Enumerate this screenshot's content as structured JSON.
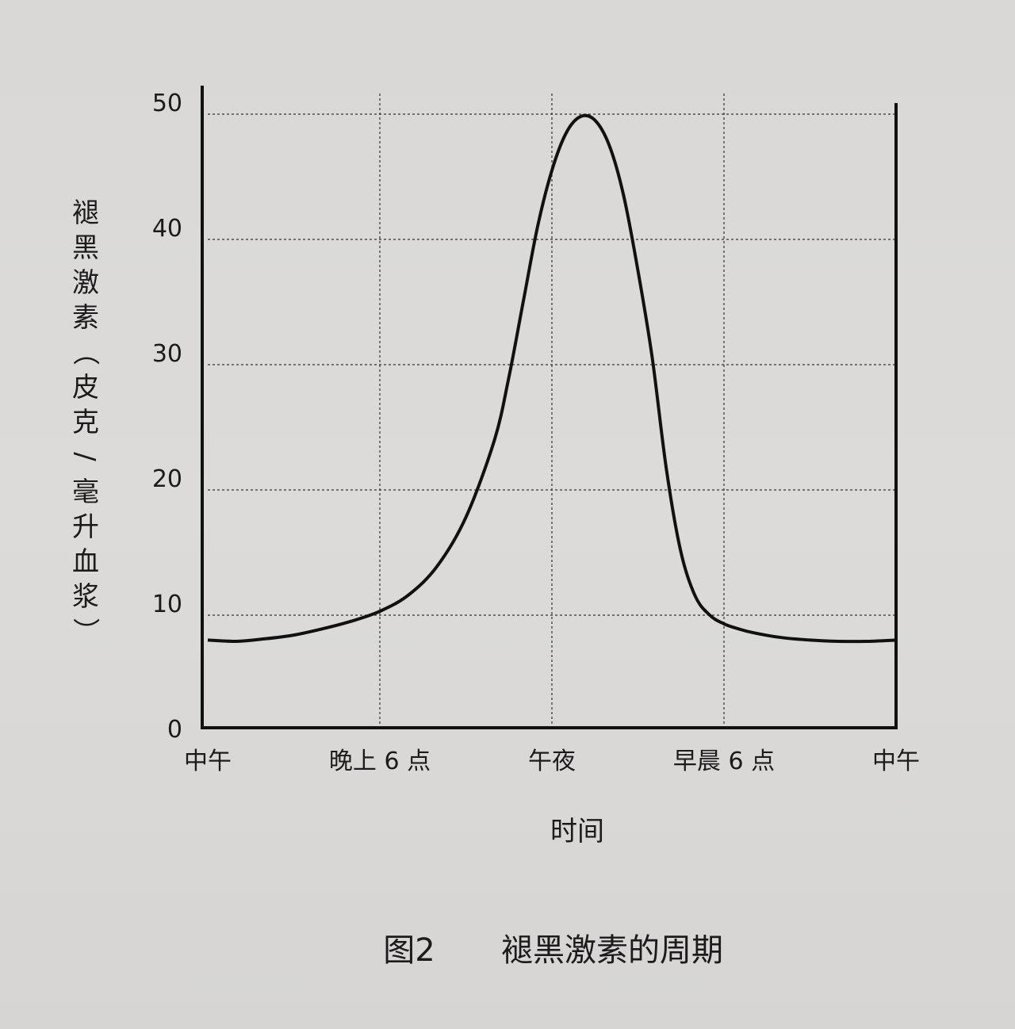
{
  "chart_data": {
    "type": "line",
    "title": "",
    "caption_label": "图2",
    "caption_text": "褪黑激素的周期",
    "xlabel": "时间",
    "ylabel": "褪黑激素（皮克/毫升血浆）",
    "ylim": [
      0,
      50
    ],
    "yticks": [
      "0",
      "10",
      "20",
      "30",
      "40",
      "50"
    ],
    "xlim": [
      0,
      24
    ],
    "xticks": [
      {
        "value": 0,
        "label": "中午"
      },
      {
        "value": 6,
        "label": "晚上 6 点"
      },
      {
        "value": 12,
        "label": "午夜"
      },
      {
        "value": 18,
        "label": "早晨 6 点"
      },
      {
        "value": 24,
        "label": "中午"
      }
    ],
    "grid": true,
    "series": [
      {
        "x": [
          0,
          1,
          2,
          3,
          4,
          5,
          6,
          7,
          8,
          9,
          10,
          10.5,
          11,
          11.5,
          12,
          12.5,
          13,
          13.5,
          14,
          14.5,
          15,
          15.5,
          16,
          16.5,
          17,
          17.5,
          18,
          18.5,
          19,
          20,
          21,
          22,
          23,
          24
        ],
        "y": [
          7.0,
          6.9,
          7.1,
          7.4,
          7.9,
          8.5,
          9.3,
          10.6,
          12.9,
          16.8,
          23.0,
          28.0,
          34.0,
          40.0,
          44.5,
          47.5,
          48.8,
          48.5,
          46.5,
          42.5,
          36.5,
          29.5,
          20.5,
          14.0,
          10.5,
          9.0,
          8.3,
          7.9,
          7.6,
          7.2,
          7.0,
          6.9,
          6.9,
          7.0
        ]
      }
    ]
  }
}
